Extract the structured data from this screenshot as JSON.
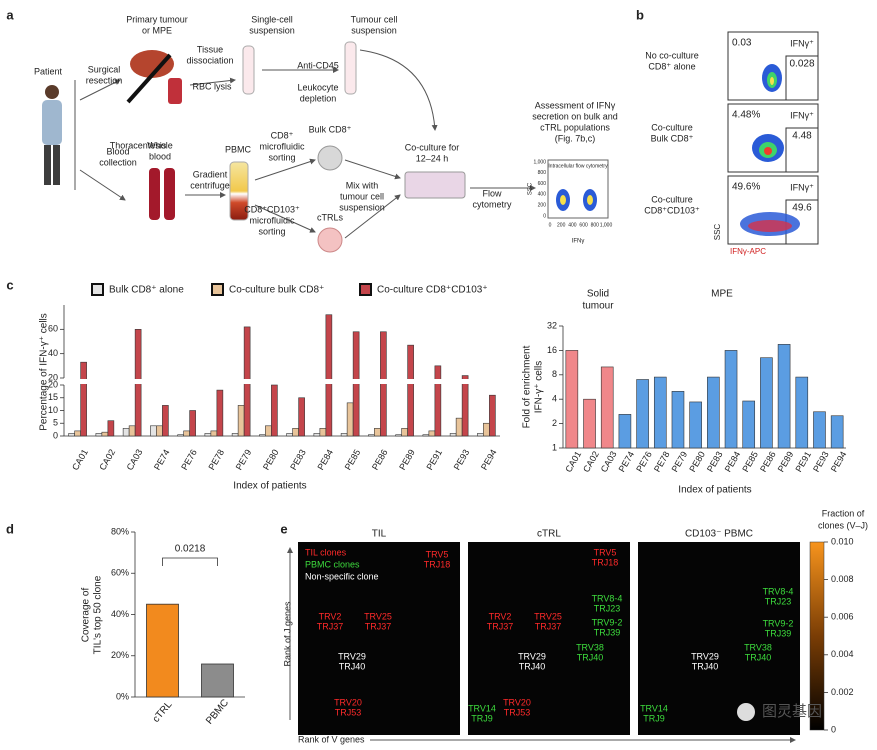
{
  "panel_a": {
    "letter": "a",
    "labels": [
      [
        "Patient"
      ],
      [
        "Primary tumour",
        "or MPE"
      ],
      [
        "Surgical",
        "resection"
      ],
      [
        "Thoracentesis"
      ],
      [
        "Single-cell",
        "suspension"
      ],
      [
        "Tumour cell",
        "suspension"
      ],
      [
        "Tissue",
        "dissociation"
      ],
      [
        "RBC lysis"
      ],
      [
        "Anti-CD45"
      ],
      [
        "Leukocyte",
        "depletion"
      ],
      [
        "Blood",
        "collection"
      ],
      [
        "Whole",
        "blood"
      ],
      [
        "PBMC"
      ],
      [
        "Gradient",
        "centrifuge"
      ],
      [
        "CD8⁺",
        "microfluidic",
        "sorting"
      ],
      [
        "Bulk CD8⁺"
      ],
      [
        "CD8⁺CD103⁺",
        "microfluidic",
        "sorting"
      ],
      [
        "cTRLs"
      ],
      [
        "Mix with",
        "tumour cell",
        "suspension"
      ],
      [
        "Co-culture for",
        "12–24 h"
      ],
      [
        "Flow",
        "cytometry"
      ],
      [
        "Assessment of IFNγ",
        "secretion on bulk and",
        "cTRL populations",
        "(Fig. 7b,c)"
      ]
    ],
    "mini_plot": {
      "title": "Intracellular flow cytometry",
      "y_label": "SSC",
      "x_label": "IFNγ",
      "x_ticks": [
        "0",
        "200",
        "400",
        "600",
        "800",
        "1,000"
      ],
      "y_ticks": [
        "0",
        "200",
        "400",
        "600",
        "800",
        "1,000"
      ]
    }
  },
  "panel_b": {
    "letter": "b",
    "rows": [
      {
        "label": [
          "No co-culture",
          "CD8⁺ alone"
        ],
        "left_value": "0.03",
        "gate_label": "IFNγ⁺",
        "gate_value": "0.028"
      },
      {
        "label": [
          "Co-culture",
          "Bulk CD8⁺"
        ],
        "left_value": "4.48%",
        "gate_label": "IFNγ⁺",
        "gate_value": "4.48"
      },
      {
        "label": [
          "Co-culture",
          "CD8⁺CD103⁺"
        ],
        "left_value": "49.6%",
        "gate_label": "IFNγ⁺",
        "gate_value": "49.6"
      }
    ],
    "y_label": "SSC",
    "x_label": "IFNγ-APC"
  },
  "panel_c_letter": "c",
  "panel_d_letter": "d",
  "chart_data": [
    {
      "type": "broken-bar",
      "y_label": "Percentage of IFN-γ⁺ cells",
      "x_label": "Index of patients",
      "categories": [
        "CA01",
        "CA02",
        "CA03",
        "PE74",
        "PE76",
        "PE78",
        "PE79",
        "PE80",
        "PE83",
        "PE84",
        "PE85",
        "PE86",
        "PE89",
        "PE91",
        "PE93",
        "PE94"
      ],
      "series": [
        {
          "name": "Bulk CD8⁺ alone",
          "color": "#e4e4e4",
          "values": [
            1,
            1,
            3,
            4,
            0.5,
            1,
            1,
            0.5,
            1,
            1,
            1,
            0.5,
            0.5,
            0.5,
            1,
            1
          ]
        },
        {
          "name": "Co-culture bulk CD8⁺",
          "color": "#e8c49a",
          "values": [
            2,
            1.5,
            4,
            4,
            2,
            2,
            12,
            4,
            3,
            3,
            13,
            3,
            3,
            2,
            7,
            5
          ]
        },
        {
          "name": "Co-culture CD8⁺CD103⁺",
          "color": "#c4454b",
          "values": [
            33,
            6,
            60,
            12,
            10,
            18,
            62,
            20,
            15,
            72,
            58,
            58,
            47,
            30,
            22,
            16
          ]
        }
      ],
      "ylim_lower": [
        0,
        20
      ],
      "yticks_lower": [
        0,
        5,
        10,
        15,
        20
      ],
      "ylim_upper": [
        20,
        80
      ],
      "yticks_upper": [
        20,
        40,
        60
      ]
    },
    {
      "type": "bar",
      "log_scale": true,
      "y_label": [
        "Fold of enrichment",
        "IFN-γ⁺ cells"
      ],
      "x_label": "Index of patients",
      "group_labels": [
        [
          "Solid",
          "tumour"
        ],
        [
          "MPE"
        ]
      ],
      "categories": [
        "CA01",
        "CA02",
        "CA03",
        "PE74",
        "PE76",
        "PE78",
        "PE79",
        "PE80",
        "PE83",
        "PE84",
        "PE85",
        "PE86",
        "PE89",
        "PE91",
        "PE93",
        "PE94"
      ],
      "values": [
        16,
        4,
        10,
        2.6,
        7,
        7.5,
        5,
        3.7,
        7.5,
        16,
        3.8,
        13,
        19,
        7.5,
        2.8,
        2.5
      ],
      "colors": [
        "#f0878a",
        "#f0878a",
        "#f0878a",
        "#5b9de2",
        "#5b9de2",
        "#5b9de2",
        "#5b9de2",
        "#5b9de2",
        "#5b9de2",
        "#5b9de2",
        "#5b9de2",
        "#5b9de2",
        "#5b9de2",
        "#5b9de2",
        "#5b9de2",
        "#5b9de2"
      ],
      "ylim": [
        1,
        32
      ],
      "yticks": [
        1,
        2,
        4,
        8,
        16,
        32
      ]
    },
    {
      "type": "bar",
      "y_label": [
        "Coverage of",
        "TIL's top 50 clone"
      ],
      "categories": [
        "cTRL",
        "PBMC"
      ],
      "values": [
        45,
        16
      ],
      "colors": [
        "#f28a1e",
        "#8c8c8c"
      ],
      "annotation": "0.0218",
      "ylim": [
        0,
        80
      ],
      "yticks": [
        {
          "value": 0,
          "label": "0%"
        },
        {
          "value": 20,
          "label": "20%"
        },
        {
          "value": 40,
          "label": "40%"
        },
        {
          "value": 60,
          "label": "60%"
        },
        {
          "value": 80,
          "label": "80%"
        }
      ]
    }
  ],
  "panel_e": {
    "letter": "e",
    "y_label": "Rank of J genes",
    "x_label": "Rank of V genes",
    "colorbar": {
      "title": [
        "Fraction of",
        "clones (V–J)"
      ],
      "lim": [
        0,
        0.01
      ],
      "ticks": [
        0,
        0.002,
        0.004,
        0.006,
        0.008,
        {
          "value": 0.01,
          "label": "0.010"
        }
      ]
    },
    "panels": [
      {
        "title": "TIL",
        "labels": [
          {
            "lines": [
              "TIL clones"
            ],
            "color": "#ff2a2a"
          },
          {
            "lines": [
              "PBMC clones"
            ],
            "color": "#3ddc3d"
          },
          {
            "lines": [
              "Non-specific clone"
            ],
            "color": "#ffffff"
          },
          {
            "lines": [
              "TRV5",
              "TRJ18"
            ],
            "color": "#ff2a2a"
          },
          {
            "lines": [
              "TRV2",
              "TRJ37"
            ],
            "color": "#ff2a2a"
          },
          {
            "lines": [
              "TRV25",
              "TRJ37"
            ],
            "color": "#ff2a2a"
          },
          {
            "lines": [
              "TRV29",
              "TRJ40"
            ],
            "color": "#ffffff"
          },
          {
            "lines": [
              "TRV20",
              "TRJ53"
            ],
            "color": "#ff2a2a"
          }
        ]
      },
      {
        "title": "cTRL",
        "labels": [
          {
            "lines": [
              "TRV5",
              "TRJ18"
            ],
            "color": "#ff2a2a"
          },
          {
            "lines": [
              "TRV8-4",
              "TRJ23"
            ],
            "color": "#3ddc3d"
          },
          {
            "lines": [
              "TRV2",
              "TRJ37"
            ],
            "color": "#ff2a2a"
          },
          {
            "lines": [
              "TRV25",
              "TRJ37"
            ],
            "color": "#ff2a2a"
          },
          {
            "lines": [
              "TRV9-2",
              "TRJ39"
            ],
            "color": "#3ddc3d"
          },
          {
            "lines": [
              "TRV38",
              "TRJ40"
            ],
            "color": "#3ddc3d"
          },
          {
            "lines": [
              "TRV29",
              "TRJ40"
            ],
            "color": "#ffffff"
          },
          {
            "lines": [
              "TRV14",
              "TRJ9"
            ],
            "color": "#3ddc3d"
          },
          {
            "lines": [
              "TRV20",
              "TRJ53"
            ],
            "color": "#ff2a2a"
          }
        ]
      },
      {
        "title": "CD103⁻ PBMC",
        "labels": [
          {
            "lines": [
              "TRV8-4",
              "TRJ23"
            ],
            "color": "#3ddc3d"
          },
          {
            "lines": [
              "TRV9-2",
              "TRJ39"
            ],
            "color": "#3ddc3d"
          },
          {
            "lines": [
              "TRV38",
              "TRJ40"
            ],
            "color": "#3ddc3d"
          },
          {
            "lines": [
              "TRV29",
              "TRJ40"
            ],
            "color": "#ffffff"
          },
          {
            "lines": [
              "TRV14",
              "TRJ9"
            ],
            "color": "#3ddc3d"
          }
        ]
      }
    ]
  },
  "watermark": "图灵基因"
}
